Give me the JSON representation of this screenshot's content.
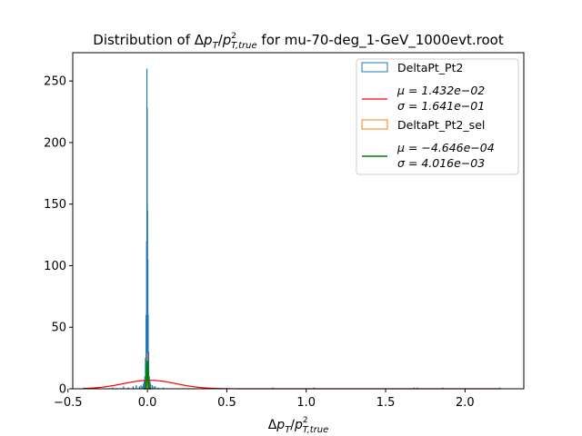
{
  "chart_data": {
    "type": "bar",
    "title_prefix": "Distribution of ",
    "title_suffix": " for mu-70-deg_1-GeV_1000evt.root",
    "xlabel": "Δp_T / p_{T,true}^2",
    "ylabel": "",
    "xlim": [
      -0.47,
      2.37
    ],
    "ylim": [
      0,
      273
    ],
    "xticks": [
      -0.5,
      0.0,
      0.5,
      1.0,
      1.5,
      2.0
    ],
    "xtick_labels": [
      "−0.5",
      "0.0",
      "0.5",
      "1.0",
      "1.5",
      "2.0"
    ],
    "yticks": [
      0,
      50,
      100,
      150,
      200,
      250
    ],
    "ytick_labels": [
      "0",
      "50",
      "100",
      "150",
      "200",
      "250"
    ],
    "grid": false,
    "legend_position": "top-right",
    "series": [
      {
        "name": "DeltaPt_Pt2",
        "kind": "step-histogram",
        "color": "#1f77b4",
        "x": [
          -0.4,
          -0.22,
          -0.15,
          -0.12,
          -0.09,
          -0.07,
          -0.05,
          -0.04,
          -0.03,
          -0.025,
          -0.02,
          -0.016,
          -0.012,
          -0.008,
          -0.005,
          -0.003,
          -0.001,
          0.001,
          0.003,
          0.005,
          0.008,
          0.012,
          0.016,
          0.02,
          0.03,
          0.04,
          0.05,
          0.07,
          0.1,
          0.79,
          1.05,
          1.68,
          1.7,
          1.86,
          2.22
        ],
        "values": [
          1,
          1,
          2,
          1,
          2,
          3,
          2,
          3,
          2,
          4,
          6,
          10,
          25,
          60,
          120,
          260,
          228,
          145,
          105,
          60,
          30,
          10,
          6,
          4,
          3,
          2,
          2,
          1,
          1,
          1,
          1,
          1,
          1,
          1,
          1
        ]
      },
      {
        "name": "fit",
        "kind": "gaussian",
        "color": "#ff0000",
        "mu_label": "μ = 1.432e−02",
        "sigma_label": "σ = 1.641e−01",
        "mu": 0.01432,
        "sigma": 0.1641,
        "amplitude": 6.9
      },
      {
        "name": "DeltaPt_Pt2_sel",
        "kind": "step-histogram",
        "color": "#ff7f0e",
        "x": [
          -0.012,
          -0.009,
          -0.006,
          -0.003,
          0.0,
          0.003,
          0.006,
          0.009,
          0.012
        ],
        "values": [
          1,
          4,
          12,
          22,
          29,
          20,
          10,
          3,
          1
        ]
      },
      {
        "name": "fit",
        "kind": "gaussian",
        "color": "#008000",
        "mu_label": "μ = −4.646e−04",
        "sigma_label": "σ = 4.016e−03",
        "mu": -0.0004646,
        "sigma": 0.004016,
        "amplitude": 22
      }
    ]
  }
}
